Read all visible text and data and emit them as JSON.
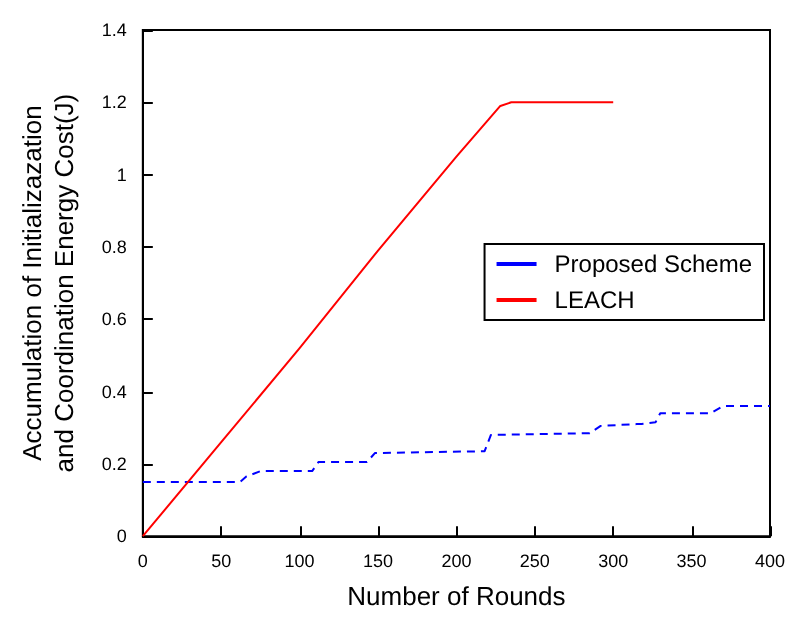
{
  "chart_data": {
    "type": "line",
    "xlabel": "Number of Rounds",
    "ylabel": "Accumulation of Initializazation\nand Coordination Energy Cost(J)",
    "xlim": [
      0,
      400
    ],
    "xticks": [
      0,
      50,
      100,
      150,
      200,
      250,
      300,
      350,
      400
    ],
    "ylim": [
      0,
      1.4
    ],
    "yticks": [
      0,
      0.2,
      0.4,
      0.6,
      0.8,
      1,
      1.2,
      1.4
    ],
    "grid": false,
    "legend": "right",
    "marker": "none",
    "series": [
      {
        "name": "Proposed Scheme",
        "color": "#0000ff",
        "line_style": "dashed",
        "x": [
          0,
          62,
          66,
          75,
          108,
          112,
          143,
          148,
          218,
          222,
          285,
          292,
          315,
          318,
          327,
          330,
          362,
          370,
          400
        ],
        "values": [
          0.15,
          0.15,
          0.165,
          0.18,
          0.18,
          0.205,
          0.205,
          0.23,
          0.235,
          0.28,
          0.285,
          0.305,
          0.31,
          0.31,
          0.315,
          0.34,
          0.34,
          0.36,
          0.36
        ]
      },
      {
        "name": "LEACH",
        "color": "#ff0000",
        "line_style": "solid",
        "x": [
          0,
          50,
          100,
          150,
          200,
          220,
          228,
          235,
          300
        ],
        "values": [
          0,
          0.26,
          0.52,
          0.79,
          1.05,
          1.15,
          1.19,
          1.2,
          1.2
        ]
      }
    ]
  }
}
